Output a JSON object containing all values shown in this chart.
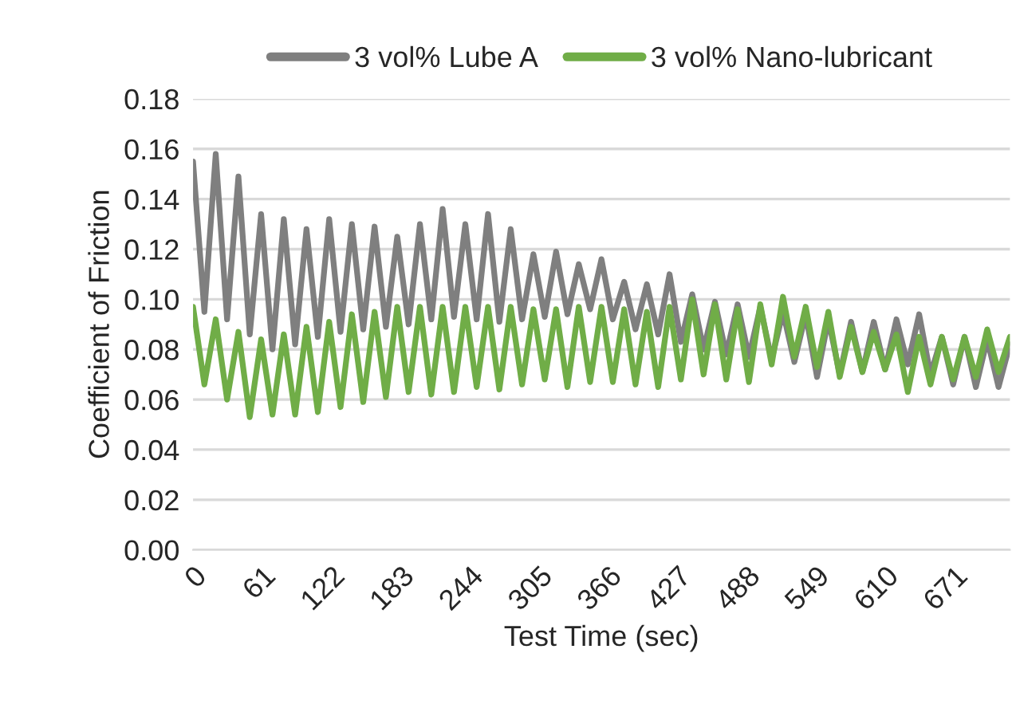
{
  "chart_data": {
    "type": "line",
    "xlabel": "Test Time (sec)",
    "ylabel": "Coefficient of Friction",
    "x": [
      0,
      10,
      20,
      30,
      40,
      50,
      60,
      70,
      80,
      90,
      100,
      110,
      120,
      130,
      140,
      150,
      160,
      170,
      180,
      190,
      200,
      210,
      220,
      230,
      240,
      250,
      260,
      270,
      280,
      290,
      300,
      310,
      320,
      330,
      340,
      350,
      360,
      370,
      380,
      390,
      400,
      410,
      420,
      430,
      440,
      450,
      460,
      470,
      480,
      490,
      500,
      510,
      520,
      530,
      540,
      550,
      560,
      570,
      580,
      590,
      600,
      610,
      620,
      630,
      640,
      650,
      660,
      670,
      680,
      690,
      700,
      710,
      720
    ],
    "series": [
      {
        "name": "3 vol% Lube A",
        "color": "#7f7f7f",
        "values": [
          0.155,
          0.095,
          0.158,
          0.092,
          0.149,
          0.086,
          0.134,
          0.08,
          0.132,
          0.082,
          0.128,
          0.085,
          0.132,
          0.087,
          0.13,
          0.088,
          0.129,
          0.089,
          0.125,
          0.09,
          0.13,
          0.092,
          0.136,
          0.093,
          0.13,
          0.092,
          0.134,
          0.091,
          0.128,
          0.092,
          0.118,
          0.093,
          0.119,
          0.094,
          0.114,
          0.096,
          0.116,
          0.092,
          0.107,
          0.088,
          0.106,
          0.086,
          0.11,
          0.083,
          0.102,
          0.08,
          0.099,
          0.078,
          0.098,
          0.077,
          0.097,
          0.076,
          0.095,
          0.075,
          0.094,
          0.069,
          0.092,
          0.07,
          0.091,
          0.071,
          0.091,
          0.072,
          0.092,
          0.074,
          0.094,
          0.07,
          0.085,
          0.066,
          0.085,
          0.065,
          0.084,
          0.065,
          0.082
        ]
      },
      {
        "name": "3 vol% Nano-lubricant",
        "color": "#70ad47",
        "values": [
          0.097,
          0.066,
          0.092,
          0.06,
          0.087,
          0.053,
          0.084,
          0.054,
          0.086,
          0.054,
          0.089,
          0.055,
          0.091,
          0.057,
          0.094,
          0.059,
          0.095,
          0.061,
          0.097,
          0.063,
          0.097,
          0.062,
          0.097,
          0.063,
          0.097,
          0.065,
          0.097,
          0.064,
          0.097,
          0.066,
          0.096,
          0.068,
          0.096,
          0.065,
          0.097,
          0.067,
          0.097,
          0.067,
          0.096,
          0.066,
          0.095,
          0.065,
          0.097,
          0.068,
          0.1,
          0.07,
          0.098,
          0.068,
          0.096,
          0.067,
          0.098,
          0.074,
          0.101,
          0.077,
          0.097,
          0.073,
          0.095,
          0.069,
          0.089,
          0.071,
          0.087,
          0.072,
          0.086,
          0.063,
          0.085,
          0.066,
          0.085,
          0.068,
          0.085,
          0.069,
          0.088,
          0.071,
          0.085
        ]
      }
    ],
    "xlim": [
      0,
      720
    ],
    "xticks": [
      0,
      61,
      122,
      183,
      244,
      305,
      366,
      427,
      488,
      549,
      610,
      671
    ],
    "ylim": [
      0,
      0.18
    ],
    "yticks": [
      {
        "value": 0,
        "label": "0.00"
      },
      {
        "value": 0.02,
        "label": "0.02"
      },
      {
        "value": 0.04,
        "label": "0.04"
      },
      {
        "value": 0.06,
        "label": "0.06"
      },
      {
        "value": 0.08,
        "label": "0.08"
      },
      {
        "value": 0.1,
        "label": "0.10"
      },
      {
        "value": 0.12,
        "label": "0.12"
      },
      {
        "value": 0.14,
        "label": "0.14"
      },
      {
        "value": 0.16,
        "label": "0.16"
      },
      {
        "value": 0.18,
        "label": "0.18"
      }
    ],
    "grid": "y",
    "legend": "top",
    "marker": "none",
    "line_style": "solid"
  }
}
